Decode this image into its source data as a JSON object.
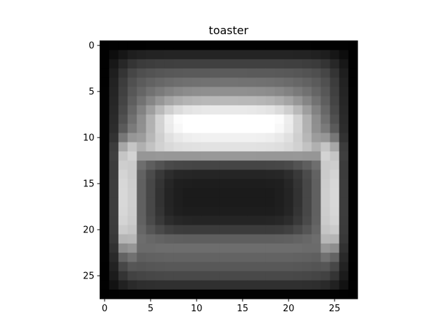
{
  "title": "toaster",
  "colormap": "gray",
  "image": {
    "rows": 28,
    "cols": 28
  },
  "x_axis": {
    "ticks": [
      0,
      5,
      10,
      15,
      20,
      25
    ],
    "labels": [
      "0",
      "5",
      "10",
      "15",
      "20",
      "25"
    ]
  },
  "y_axis": {
    "ticks": [
      0,
      5,
      10,
      15,
      20,
      25
    ],
    "labels": [
      "0",
      "5",
      "10",
      "15",
      "20",
      "25"
    ]
  }
}
